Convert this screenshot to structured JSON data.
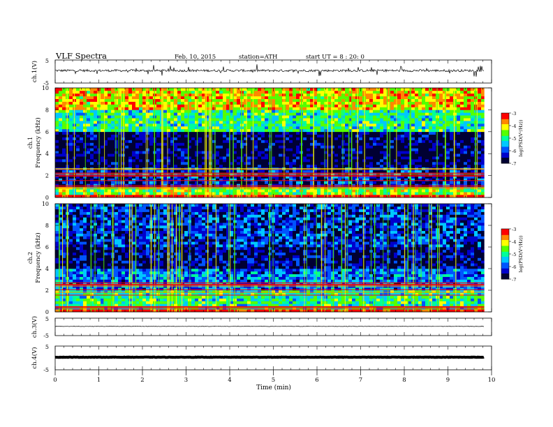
{
  "header": {
    "title": "VLF Spectra",
    "date": "Feb. 10, 2015",
    "station": "station=ATH",
    "start": "start UT =  8 : 20: 0"
  },
  "chart_data": [
    {
      "type": "line",
      "ylabel": "ch.1(V)",
      "yticks": [
        "5",
        "-5"
      ],
      "ylim": [
        -5,
        5
      ],
      "xlim": [
        0,
        10
      ],
      "data_end_min": 9.83,
      "baseline_v": 0.4,
      "noise": "high"
    },
    {
      "type": "heatmap",
      "ylabel_top": "ch.1",
      "ylabel": "Frequency (kHz)",
      "yticks": [
        "0",
        "2",
        "4",
        "6",
        "8",
        "10"
      ],
      "ylim": [
        0,
        10
      ],
      "xlim": [
        0,
        10
      ],
      "data_end_min": 9.83,
      "colorbar": {
        "label": "log(PSD(V²/Hz))",
        "ticks": [
          "-3",
          "-4",
          "-5",
          "-6",
          "-7"
        ],
        "range": [
          -7,
          -3
        ]
      },
      "bands": [
        {
          "from_khz": 8.0,
          "to_khz": 10.0,
          "log_psd": -4.0
        },
        {
          "from_khz": 6.0,
          "to_khz": 8.0,
          "log_psd": -5.0
        },
        {
          "from_khz": 2.8,
          "to_khz": 6.0,
          "log_psd": -6.8
        },
        {
          "from_khz": 1.0,
          "to_khz": 2.8,
          "log_psd": -6.3
        },
        {
          "from_khz": 0.2,
          "to_khz": 1.0,
          "log_psd": -4.5
        }
      ]
    },
    {
      "type": "heatmap",
      "ylabel_top": "ch.2",
      "ylabel": "Frequency (kHz)",
      "yticks": [
        "0",
        "2",
        "4",
        "6",
        "8",
        "10"
      ],
      "ylim": [
        0,
        10
      ],
      "xlim": [
        0,
        10
      ],
      "data_end_min": 9.83,
      "colorbar": {
        "label": "log(PSD(V²/Hz))",
        "ticks": [
          "-3",
          "-4",
          "-5",
          "-6",
          "-7"
        ],
        "range": [
          -7,
          -3
        ]
      },
      "bands": [
        {
          "from_khz": 6.0,
          "to_khz": 10.0,
          "log_psd": -6.2
        },
        {
          "from_khz": 4.0,
          "to_khz": 6.0,
          "log_psd": -6.6
        },
        {
          "from_khz": 2.0,
          "to_khz": 4.0,
          "log_psd": -5.8
        },
        {
          "from_khz": 0.2,
          "to_khz": 2.0,
          "log_psd": -5.0
        }
      ]
    },
    {
      "type": "line",
      "ylabel": "ch.3(V)",
      "yticks": [
        "5",
        "-5"
      ],
      "ylim": [
        -5,
        5
      ],
      "xlim": [
        0,
        10
      ],
      "data_end_min": 9.83,
      "baseline_v": 0.3,
      "noise": "low"
    },
    {
      "type": "line",
      "ylabel": "ch.4(V)",
      "yticks": [
        "5",
        "-5"
      ],
      "ylim": [
        -5,
        5
      ],
      "xlim": [
        0,
        10
      ],
      "data_end_min": 9.83,
      "baseline_v": 0.3,
      "noise": "thick"
    }
  ],
  "xaxis": {
    "label": "Time (min)",
    "ticks": [
      "0",
      "1",
      "2",
      "3",
      "4",
      "5",
      "6",
      "7",
      "8",
      "9",
      "10"
    ]
  },
  "colors": {
    "colormap": [
      "#000033",
      "#0000cc",
      "#0055ff",
      "#00c8ff",
      "#00ff9a",
      "#55ff00",
      "#ffff00",
      "#ff8800",
      "#ff0000",
      "#ffffff"
    ]
  }
}
